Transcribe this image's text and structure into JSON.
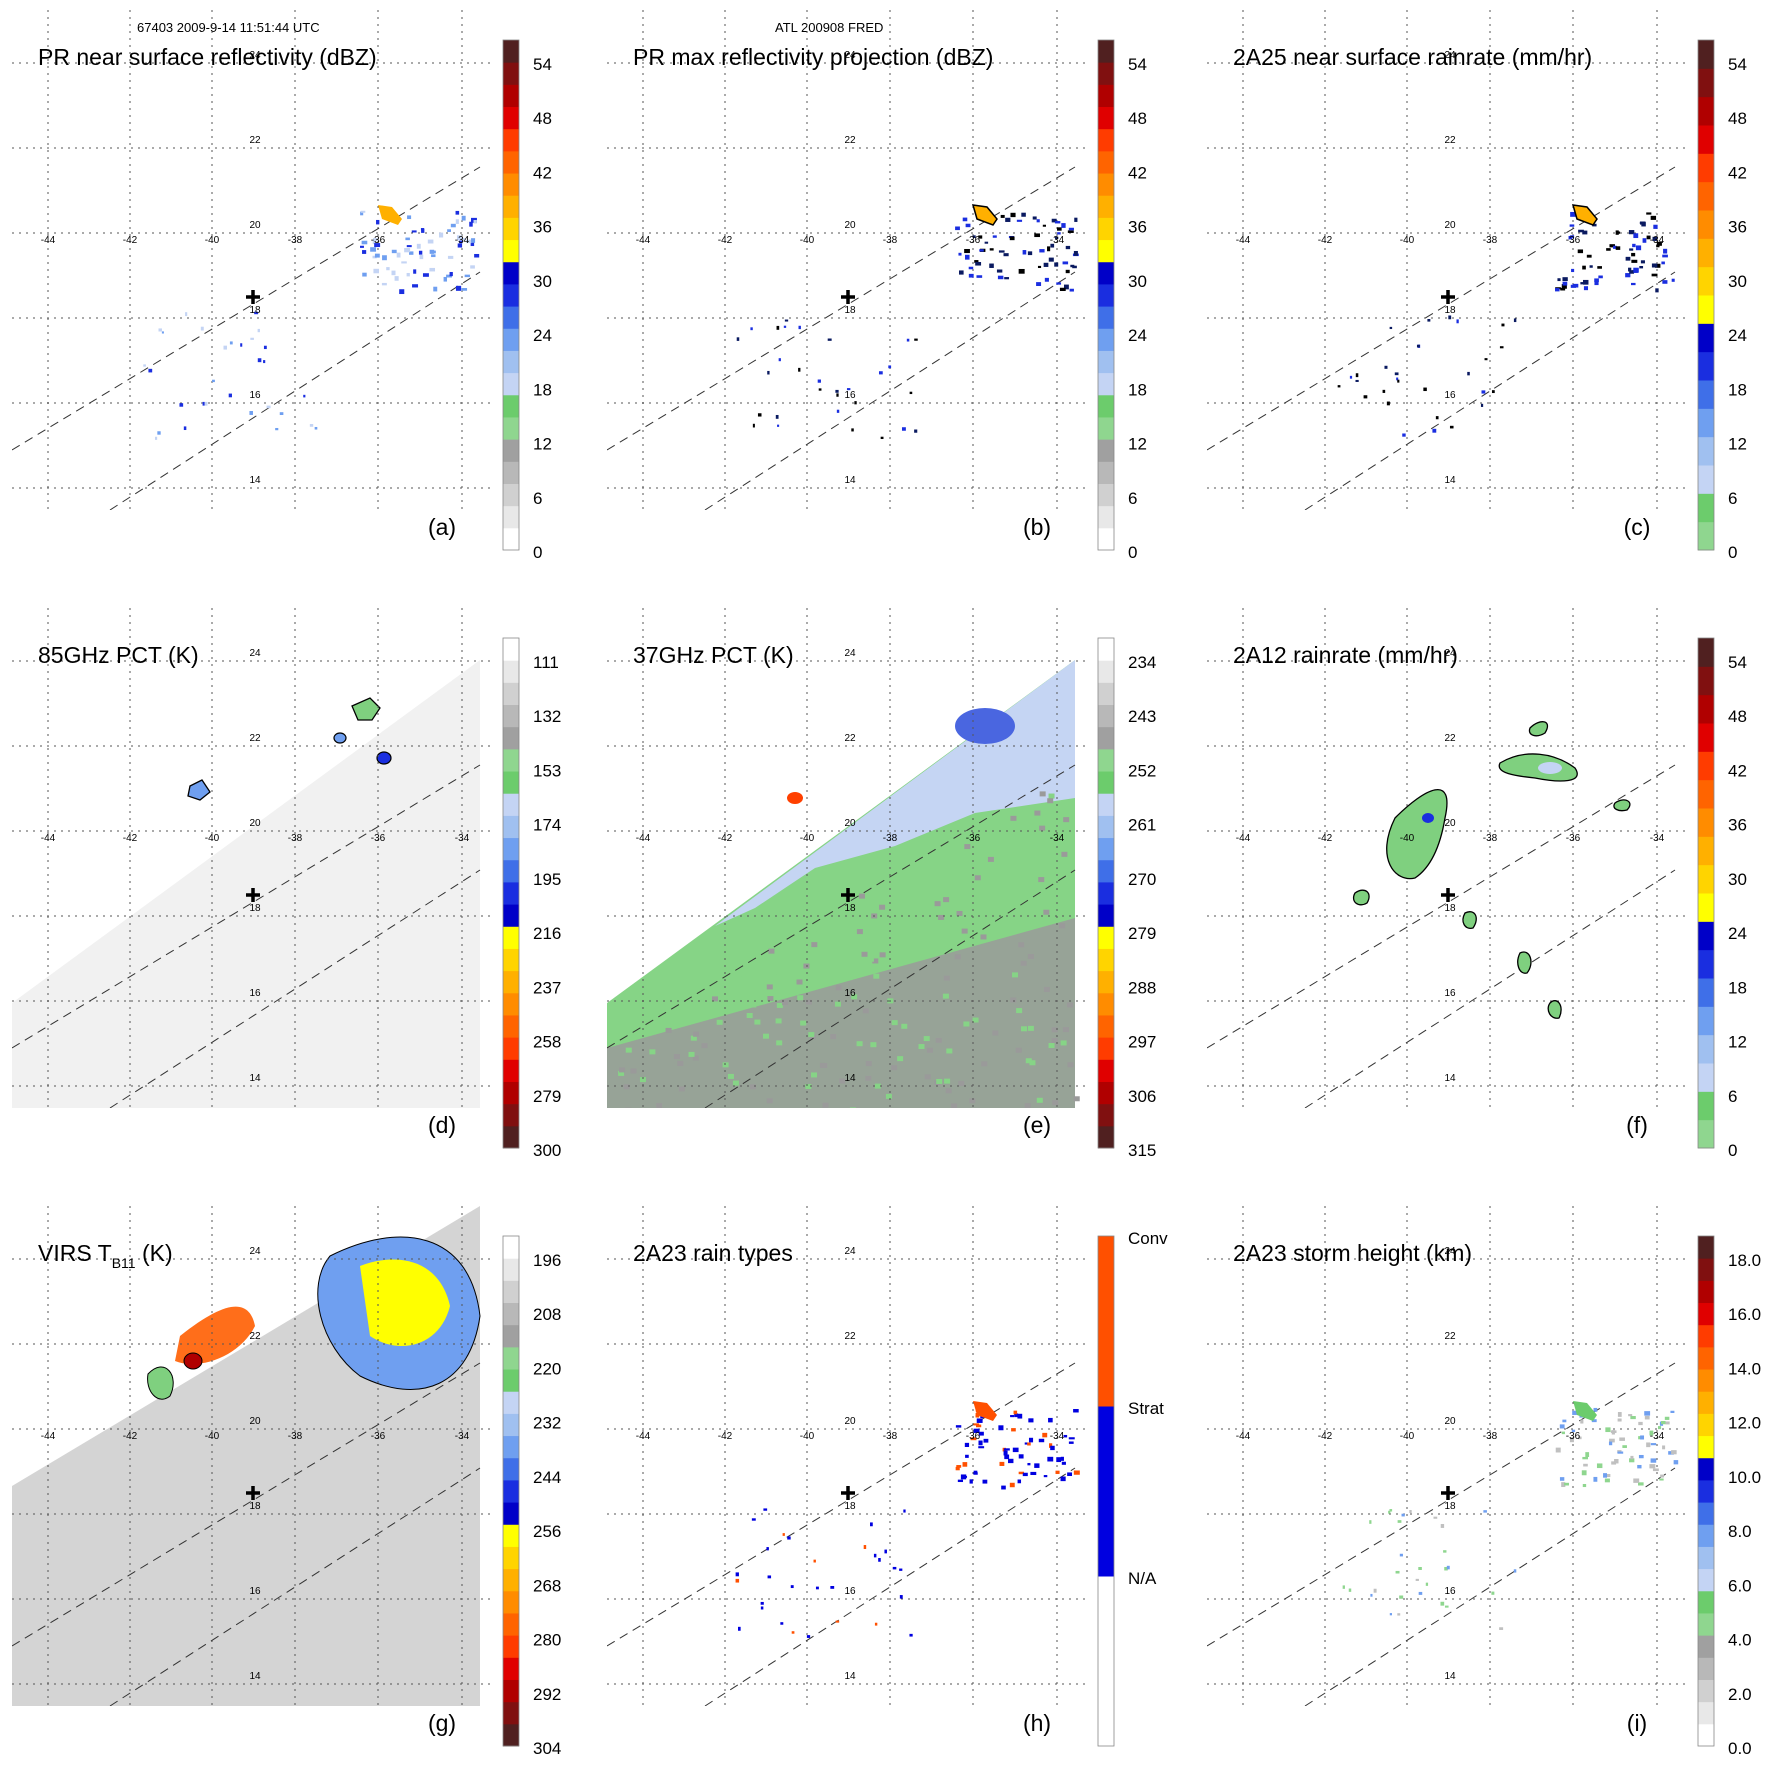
{
  "header": {
    "left": "67403 2009-9-14 11:51:44 UTC",
    "center": "ATL 200908 FRED"
  },
  "map": {
    "lon_labels": [
      "-44",
      "-42",
      "-40",
      "-38",
      "-36",
      "-34"
    ],
    "lat_labels": [
      "24",
      "22",
      "20",
      "18",
      "16",
      "14"
    ]
  },
  "colors": {
    "dbz": [
      "#ffffff",
      "#e8e8e8",
      "#d0d0d0",
      "#b8b8b8",
      "#a0a0a0",
      "#8fd68f",
      "#6ccc6c",
      "#c4d4f4",
      "#a0c0f0",
      "#6f9ff0",
      "#3f6fe8",
      "#1a2ee0",
      "#0000c8",
      "#ffff00",
      "#ffd400",
      "#ffb000",
      "#ff8c00",
      "#ff6400",
      "#ff3c00",
      "#e00000",
      "#b00000",
      "#801010",
      "#502020"
    ],
    "rain": [
      "#8fd68f",
      "#6ccc6c",
      "#c4d4f4",
      "#a0c0f0",
      "#6f9ff0",
      "#3f6fe8",
      "#1a2ee0",
      "#0000c8",
      "#ffff00",
      "#ffd400",
      "#ffb000",
      "#ff8c00",
      "#ff6400",
      "#ff3c00",
      "#e00000",
      "#b00000",
      "#801010",
      "#502020"
    ],
    "tb": [
      "#502020",
      "#801010",
      "#b00000",
      "#e00000",
      "#ff3c00",
      "#ff6400",
      "#ff8c00",
      "#ffb000",
      "#ffd400",
      "#ffff00",
      "#0000c8",
      "#1a2ee0",
      "#3f6fe8",
      "#6f9ff0",
      "#a0c0f0",
      "#c4d4f4",
      "#6ccc6c",
      "#8fd68f",
      "#a0a0a0",
      "#b8b8b8",
      "#d0d0d0",
      "#e8e8e8",
      "#ffffff"
    ],
    "types": [
      "#ffffff",
      "#0000e0",
      "#ff5000"
    ]
  },
  "panels": [
    {
      "id": "a",
      "title": "PR near surface reflectivity (dBZ)",
      "label": "(a)",
      "colorbar": {
        "palette": "dbz",
        "ticks": [
          "54",
          "48",
          "42",
          "36",
          "30",
          "24",
          "18",
          "12",
          "6",
          "0"
        ]
      },
      "swath": "pr",
      "echo": "pr-light"
    },
    {
      "id": "b",
      "title": "PR max reflectivity projection (dBZ)",
      "label": "(b)",
      "colorbar": {
        "palette": "dbz",
        "ticks": [
          "54",
          "48",
          "42",
          "36",
          "30",
          "24",
          "18",
          "12",
          "6",
          "0"
        ]
      },
      "swath": "pr",
      "echo": "pr-dark"
    },
    {
      "id": "c",
      "title": "2A25 near surface rainrate (mm/hr)",
      "label": "(c)",
      "colorbar": {
        "palette": "rain",
        "ticks": [
          "54",
          "48",
          "42",
          "36",
          "30",
          "24",
          "18",
          "12",
          "6",
          "0"
        ]
      },
      "swath": "pr",
      "echo": "pr-dark"
    },
    {
      "id": "d",
      "title": "85GHz PCT (K)",
      "label": "(d)",
      "colorbar": {
        "palette": "tb",
        "ticks": [
          "111",
          "132",
          "153",
          "174",
          "195",
          "216",
          "237",
          "258",
          "279",
          "300"
        ]
      },
      "swath": "tmi",
      "echo": "pct85"
    },
    {
      "id": "e",
      "title": "37GHz PCT (K)",
      "label": "(e)",
      "colorbar": {
        "palette": "tb",
        "ticks": [
          "234",
          "243",
          "252",
          "261",
          "270",
          "279",
          "288",
          "297",
          "306",
          "315"
        ]
      },
      "swath": "tmi",
      "echo": "pct37"
    },
    {
      "id": "f",
      "title": "2A12 rainrate (mm/hr)",
      "label": "(f)",
      "colorbar": {
        "palette": "rain",
        "ticks": [
          "54",
          "48",
          "42",
          "36",
          "30",
          "24",
          "18",
          "12",
          "6",
          "0"
        ]
      },
      "swath": "pr",
      "echo": "tmi-rain"
    },
    {
      "id": "g",
      "title": "VIRS T",
      "title_sub": "B11",
      "title_tail": " (K)",
      "label": "(g)",
      "colorbar": {
        "palette": "tb",
        "ticks": [
          "196",
          "208",
          "220",
          "232",
          "244",
          "256",
          "268",
          "280",
          "292",
          "304"
        ]
      },
      "swath": "virs",
      "echo": "virs"
    },
    {
      "id": "h",
      "title": "2A23 rain types",
      "label": "(h)",
      "colorbar": {
        "palette": "types",
        "ticks": [
          "Conv",
          "Strat",
          "N/A"
        ]
      },
      "swath": "pr",
      "echo": "types"
    },
    {
      "id": "i",
      "title": "2A23 storm height (km)",
      "label": "(i)",
      "colorbar": {
        "palette": "dbz",
        "ticks": [
          "18.0",
          "16.0",
          "14.0",
          "12.0",
          "10.0",
          "8.0",
          "6.0",
          "4.0",
          "2.0",
          "0.0"
        ]
      },
      "swath": "pr",
      "echo": "height"
    }
  ]
}
